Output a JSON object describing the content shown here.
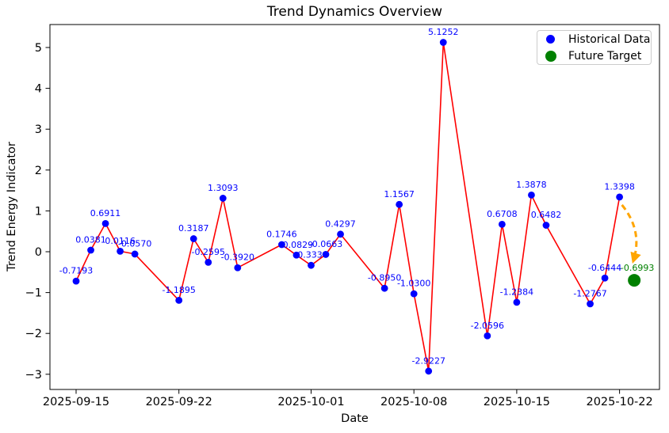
{
  "chart_data": {
    "type": "line",
    "title": "Trend Dynamics Overview",
    "xlabel": "Date",
    "ylabel": "Trend Energy Indicator",
    "grid": false,
    "x_tick_labels": [
      "2025-09-15",
      "2025-09-22",
      "2025-10-01",
      "2025-10-08",
      "2025-10-15",
      "2025-10-22"
    ],
    "y_ticks": [
      5,
      4,
      3,
      2,
      1,
      0,
      -1,
      -2,
      -3
    ],
    "ylim": [
      -3.37,
      5.56
    ],
    "legend": {
      "position": "upper right",
      "entries": [
        {
          "label": "Historical Data",
          "color": "#0000ff"
        },
        {
          "label": "Future Target",
          "color": "#008000"
        }
      ]
    },
    "colors": {
      "line": "#ff0000",
      "marker": "#0000ff",
      "point_label": "#0000ff",
      "future_marker": "#008000",
      "future_label": "#008000",
      "arrow": "#ffa500",
      "axis": "#000000"
    },
    "series": [
      {
        "name": "Historical Data",
        "style": "line+marker",
        "points": [
          {
            "date": "2025-09-15",
            "value": -0.7193
          },
          {
            "date": "2025-09-16",
            "value": 0.0381
          },
          {
            "date": "2025-09-17",
            "value": 0.6911
          },
          {
            "date": "2025-09-18",
            "value": 0.0116
          },
          {
            "date": "2025-09-19",
            "value": -0.057
          },
          {
            "date": "2025-09-22",
            "value": -1.1895
          },
          {
            "date": "2025-09-23",
            "value": 0.3187
          },
          {
            "date": "2025-09-24",
            "value": -0.2595
          },
          {
            "date": "2025-09-25",
            "value": 1.3093
          },
          {
            "date": "2025-09-26",
            "value": -0.392
          },
          {
            "date": "2025-09-29",
            "value": 0.1746
          },
          {
            "date": "2025-09-30",
            "value": -0.0829
          },
          {
            "date": "2025-10-01",
            "value": -0.333
          },
          {
            "date": "2025-10-02",
            "value": -0.0663
          },
          {
            "date": "2025-10-03",
            "value": 0.4297
          },
          {
            "date": "2025-10-06",
            "value": -0.895
          },
          {
            "date": "2025-10-07",
            "value": 1.1567
          },
          {
            "date": "2025-10-08",
            "value": -1.03
          },
          {
            "date": "2025-10-09",
            "value": -2.9227
          },
          {
            "date": "2025-10-10",
            "value": 5.1252
          },
          {
            "date": "2025-10-13",
            "value": -2.0596
          },
          {
            "date": "2025-10-14",
            "value": 0.6708
          },
          {
            "date": "2025-10-15",
            "value": -1.2384
          },
          {
            "date": "2025-10-16",
            "value": 1.3878
          },
          {
            "date": "2025-10-17",
            "value": 0.6482
          },
          {
            "date": "2025-10-20",
            "value": -1.2767
          },
          {
            "date": "2025-10-21",
            "value": -0.6444
          },
          {
            "date": "2025-10-22",
            "value": 1.3398
          }
        ]
      },
      {
        "name": "Future Target",
        "style": "marker",
        "points": [
          {
            "date": "2025-10-23",
            "value": -0.6993
          }
        ]
      }
    ],
    "annotation_arrow": {
      "from": {
        "date": "2025-10-22",
        "value": 1.3398
      },
      "to": {
        "date": "2025-10-23",
        "value": -0.6993
      },
      "style": "dashed-curved"
    }
  }
}
